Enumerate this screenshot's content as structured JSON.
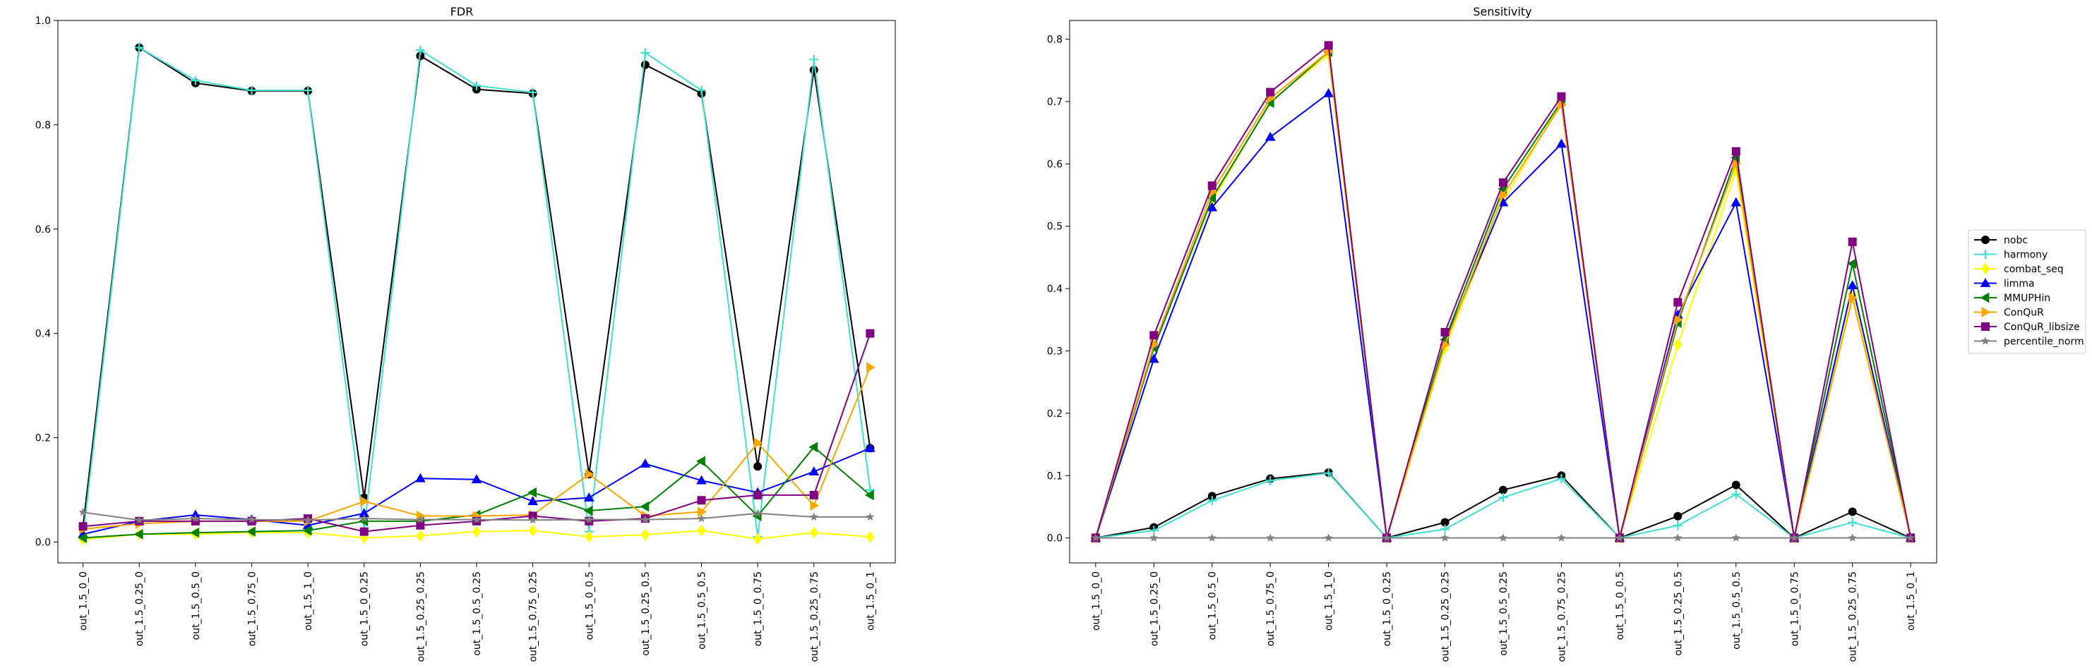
{
  "categories": [
    "out_1.5_0_0",
    "out_1.5_0.25_0",
    "out_1.5_0.5_0",
    "out_1.5_0.75_0",
    "out_1.5_1_0",
    "out_1.5_0_0.25",
    "out_1.5_0.25_0.25",
    "out_1.5_0.5_0.25",
    "out_1.5_0.75_0.25",
    "out_1.5_0_0.5",
    "out_1.5_0.25_0.5",
    "out_1.5_0.5_0.5",
    "out_1.5_0_0.75",
    "out_1.5_0.25_0.75",
    "out_1.5_0_1"
  ],
  "legend": {
    "placement": "right, outside",
    "entries": [
      {
        "name": "nobc",
        "color": "#000000",
        "marker": "circle"
      },
      {
        "name": "harmony",
        "color": "#40e0d0",
        "marker": "plus"
      },
      {
        "name": "combat_seq",
        "color": "#ffff00",
        "marker": "diamond"
      },
      {
        "name": "limma",
        "color": "#0000ff",
        "marker": "triangle-up"
      },
      {
        "name": "MMUPHin",
        "color": "#008000",
        "marker": "triangle-left"
      },
      {
        "name": "ConQuR",
        "color": "#ffa500",
        "marker": "triangle-right"
      },
      {
        "name": "ConQuR_libsize",
        "color": "#800080",
        "marker": "square"
      },
      {
        "name": "percentile_norm",
        "color": "#808080",
        "marker": "star"
      }
    ]
  },
  "chart_data": [
    {
      "type": "line",
      "title": "FDR",
      "xlabel": "",
      "ylabel": "",
      "ylim": [
        -0.04,
        1.0
      ],
      "yticks": [
        0.0,
        0.2,
        0.4,
        0.6,
        0.8,
        1.0
      ],
      "ytick_labels": [
        "0.0",
        "0.2",
        "0.4",
        "0.6",
        "0.8",
        "1.0"
      ],
      "grid": false,
      "series": [
        {
          "name": "nobc",
          "values": [
            0.03,
            0.948,
            0.88,
            0.865,
            0.865,
            0.085,
            0.932,
            0.868,
            0.86,
            0.13,
            0.915,
            0.86,
            0.145,
            0.905,
            0.18
          ]
        },
        {
          "name": "harmony",
          "values": [
            0.01,
            0.948,
            0.885,
            0.866,
            0.866,
            0.025,
            0.943,
            0.875,
            0.862,
            0.02,
            0.938,
            0.866,
            0.01,
            0.925,
            0.1
          ]
        },
        {
          "name": "combat_seq",
          "values": [
            0.005,
            0.015,
            0.015,
            0.018,
            0.018,
            0.008,
            0.012,
            0.02,
            0.022,
            0.01,
            0.014,
            0.022,
            0.006,
            0.018,
            0.01
          ]
        },
        {
          "name": "limma",
          "values": [
            0.015,
            0.04,
            0.052,
            0.043,
            0.032,
            0.055,
            0.122,
            0.12,
            0.078,
            0.085,
            0.15,
            0.118,
            0.095,
            0.135,
            0.18
          ]
        },
        {
          "name": "MMUPHin",
          "values": [
            0.008,
            0.015,
            0.018,
            0.02,
            0.022,
            0.04,
            0.04,
            0.052,
            0.095,
            0.06,
            0.068,
            0.155,
            0.05,
            0.182,
            0.09
          ]
        },
        {
          "name": "ConQuR",
          "values": [
            0.025,
            0.035,
            0.04,
            0.04,
            0.04,
            0.078,
            0.05,
            0.05,
            0.052,
            0.13,
            0.05,
            0.058,
            0.19,
            0.07,
            0.335
          ]
        },
        {
          "name": "ConQuR_libsize",
          "values": [
            0.03,
            0.04,
            0.04,
            0.04,
            0.045,
            0.02,
            0.032,
            0.04,
            0.05,
            0.04,
            0.045,
            0.08,
            0.09,
            0.09,
            0.4
          ]
        },
        {
          "name": "percentile_norm",
          "values": [
            0.057,
            0.042,
            0.045,
            0.043,
            0.042,
            0.045,
            0.043,
            0.043,
            0.042,
            0.043,
            0.043,
            0.045,
            0.055,
            0.048,
            0.048
          ]
        }
      ]
    },
    {
      "type": "line",
      "title": "Sensitivity",
      "xlabel": "",
      "ylabel": "",
      "ylim": [
        -0.04,
        0.83
      ],
      "yticks": [
        0.0,
        0.1,
        0.2,
        0.3,
        0.4,
        0.5,
        0.6,
        0.7,
        0.8
      ],
      "ytick_labels": [
        "0.0",
        "0.1",
        "0.2",
        "0.3",
        "0.4",
        "0.5",
        "0.6",
        "0.7",
        "0.8"
      ],
      "grid": false,
      "series": [
        {
          "name": "nobc",
          "values": [
            0,
            0.017,
            0.067,
            0.095,
            0.105,
            0,
            0.025,
            0.077,
            0.1,
            0,
            0.035,
            0.085,
            0,
            0.042,
            0
          ]
        },
        {
          "name": "harmony",
          "values": [
            0,
            0.012,
            0.06,
            0.092,
            0.104,
            0,
            0.014,
            0.065,
            0.095,
            0,
            0.02,
            0.07,
            0,
            0.025,
            0
          ]
        },
        {
          "name": "combat_seq",
          "values": [
            0,
            0.31,
            0.54,
            0.7,
            0.775,
            0,
            0.305,
            0.54,
            0.7,
            0,
            0.31,
            0.59,
            0,
            0.39,
            0
          ]
        },
        {
          "name": "limma",
          "values": [
            0,
            0.287,
            0.53,
            0.643,
            0.713,
            0,
            0.315,
            0.538,
            0.632,
            0,
            0.358,
            0.538,
            0,
            0.405,
            0
          ]
        },
        {
          "name": "MMUPHin",
          "values": [
            0,
            0.305,
            0.545,
            0.698,
            0.78,
            0,
            0.318,
            0.56,
            0.7,
            0,
            0.345,
            0.61,
            0,
            0.44,
            0
          ]
        },
        {
          "name": "ConQuR",
          "values": [
            0,
            0.31,
            0.555,
            0.705,
            0.78,
            0,
            0.31,
            0.55,
            0.695,
            0,
            0.35,
            0.6,
            0,
            0.385,
            0
          ]
        },
        {
          "name": "ConQuR_libsize",
          "values": [
            0,
            0.325,
            0.565,
            0.715,
            0.79,
            0,
            0.33,
            0.57,
            0.708,
            0,
            0.378,
            0.62,
            0,
            0.475,
            0
          ]
        },
        {
          "name": "percentile_norm",
          "values": [
            0,
            0,
            0,
            0,
            0,
            0,
            0,
            0,
            0,
            0,
            0,
            0,
            0,
            0,
            0
          ]
        }
      ]
    }
  ]
}
